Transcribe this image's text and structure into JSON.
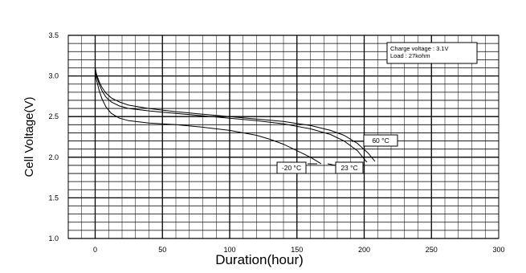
{
  "chart_data": {
    "type": "line",
    "xlabel": "Duration(hour)",
    "ylabel": "Cell Voltage(V)",
    "xlim": [
      -20,
      300
    ],
    "ylim": [
      1.0,
      3.5
    ],
    "x_ticks": [
      "0",
      "50",
      "100",
      "150",
      "200",
      "250",
      "300"
    ],
    "y_ticks": [
      "1.0",
      "1.5",
      "2.0",
      "2.5",
      "3.0",
      "3.5"
    ],
    "grid": true,
    "annotation_lines": [
      "Charge voltage : 3.1V",
      "Load : 27kohm"
    ],
    "series": [
      {
        "name": "-20 °C",
        "x": [
          0,
          1,
          3,
          5,
          8,
          12,
          18,
          25,
          40,
          60,
          80,
          100,
          120,
          130,
          140,
          150,
          160,
          168
        ],
        "y": [
          3.05,
          2.95,
          2.82,
          2.72,
          2.62,
          2.54,
          2.48,
          2.45,
          2.42,
          2.4,
          2.37,
          2.33,
          2.27,
          2.22,
          2.16,
          2.08,
          2.0,
          1.92
        ]
      },
      {
        "name": "23 °C",
        "x": [
          0,
          1,
          3,
          5,
          8,
          12,
          18,
          25,
          40,
          60,
          80,
          100,
          120,
          140,
          160,
          175,
          185,
          195,
          202
        ],
        "y": [
          3.1,
          3.0,
          2.9,
          2.82,
          2.74,
          2.68,
          2.63,
          2.6,
          2.57,
          2.54,
          2.51,
          2.48,
          2.45,
          2.41,
          2.35,
          2.28,
          2.2,
          2.08,
          1.94
        ]
      },
      {
        "name": "60 °C",
        "x": [
          0,
          1,
          3,
          5,
          8,
          12,
          18,
          25,
          40,
          60,
          80,
          100,
          120,
          140,
          160,
          175,
          185,
          195,
          203,
          208
        ],
        "y": [
          3.1,
          3.02,
          2.93,
          2.86,
          2.79,
          2.73,
          2.68,
          2.64,
          2.6,
          2.56,
          2.53,
          2.5,
          2.47,
          2.44,
          2.39,
          2.33,
          2.27,
          2.17,
          2.05,
          1.95
        ]
      }
    ]
  }
}
